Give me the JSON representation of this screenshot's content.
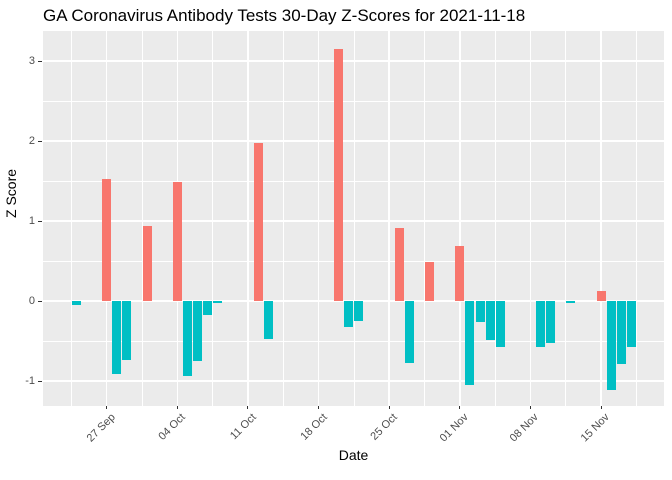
{
  "title": "GA Coronavirus Antibody Tests 30-Day Z-Scores for 2021-11-18",
  "chart_data": {
    "type": "bar",
    "title": "GA Coronavirus Antibody Tests 30-Day Z-Scores for 2021-11-18",
    "xlabel": "Date",
    "ylabel": "Z Score",
    "legend": "none",
    "grid": "white major+minor gridlines on grey panel",
    "x_tick_labels": [
      "27 Sep",
      "04 Oct",
      "11 Oct",
      "18 Oct",
      "25 Oct",
      "01 Nov",
      "08 Nov",
      "15 Nov"
    ],
    "x_tick_days": [
      0,
      7,
      14,
      21,
      28,
      35,
      42,
      49
    ],
    "x_minor_days": [
      -3.5,
      3.5,
      10.5,
      17.5,
      24.5,
      31.5,
      38.5,
      45.5,
      52.5
    ],
    "y_ticks": [
      3,
      2,
      1,
      0,
      -1
    ],
    "y_minor": [
      2.5,
      1.5,
      0.5,
      -0.5
    ],
    "ylim": [
      -1.3125,
      3.375
    ],
    "x_domain_days": [
      -6.31,
      55.23
    ],
    "colors": {
      "positive": "#F8766D",
      "negative": "#00BFC4",
      "panel": "#EBEBEB",
      "grid": "#FFFFFF",
      "tick_text": "#4D4D4D",
      "tick_mark": "#333333",
      "title_text": "#000000"
    },
    "points": [
      {
        "date": "24 Sep",
        "day": -3,
        "z": -0.05
      },
      {
        "date": "27 Sep",
        "day": 0,
        "z": 1.53
      },
      {
        "date": "28 Sep",
        "day": 1,
        "z": -0.91
      },
      {
        "date": "29 Sep",
        "day": 2,
        "z": -0.74
      },
      {
        "date": "01 Oct",
        "day": 4,
        "z": 0.94
      },
      {
        "date": "04 Oct",
        "day": 7,
        "z": 1.49
      },
      {
        "date": "05 Oct",
        "day": 8,
        "z": -0.94
      },
      {
        "date": "06 Oct",
        "day": 9,
        "z": -0.75
      },
      {
        "date": "07 Oct",
        "day": 10,
        "z": -0.18
      },
      {
        "date": "08 Oct",
        "day": 11,
        "z": -0.02
      },
      {
        "date": "12 Oct",
        "day": 15,
        "z": 1.97
      },
      {
        "date": "13 Oct",
        "day": 16,
        "z": -0.48
      },
      {
        "date": "20 Oct",
        "day": 23,
        "z": 3.15
      },
      {
        "date": "21 Oct",
        "day": 24,
        "z": -0.33
      },
      {
        "date": "22 Oct",
        "day": 25,
        "z": -0.25
      },
      {
        "date": "26 Oct",
        "day": 29,
        "z": 0.91
      },
      {
        "date": "27 Oct",
        "day": 30,
        "z": -0.78
      },
      {
        "date": "29 Oct",
        "day": 32,
        "z": 0.49
      },
      {
        "date": "01 Nov",
        "day": 35,
        "z": 0.69
      },
      {
        "date": "02 Nov",
        "day": 36,
        "z": -1.05
      },
      {
        "date": "03 Nov",
        "day": 37,
        "z": -0.26
      },
      {
        "date": "04 Nov",
        "day": 38,
        "z": -0.49
      },
      {
        "date": "05 Nov",
        "day": 39,
        "z": -0.58
      },
      {
        "date": "09 Nov",
        "day": 43,
        "z": -0.58
      },
      {
        "date": "10 Nov",
        "day": 44,
        "z": -0.53
      },
      {
        "date": "12 Nov",
        "day": 46,
        "z": -0.03
      },
      {
        "date": "15 Nov",
        "day": 49,
        "z": 0.13
      },
      {
        "date": "16 Nov",
        "day": 50,
        "z": -1.11
      },
      {
        "date": "17 Nov",
        "day": 51,
        "z": -0.79
      },
      {
        "date": "18 Nov",
        "day": 52,
        "z": -0.57
      }
    ]
  }
}
